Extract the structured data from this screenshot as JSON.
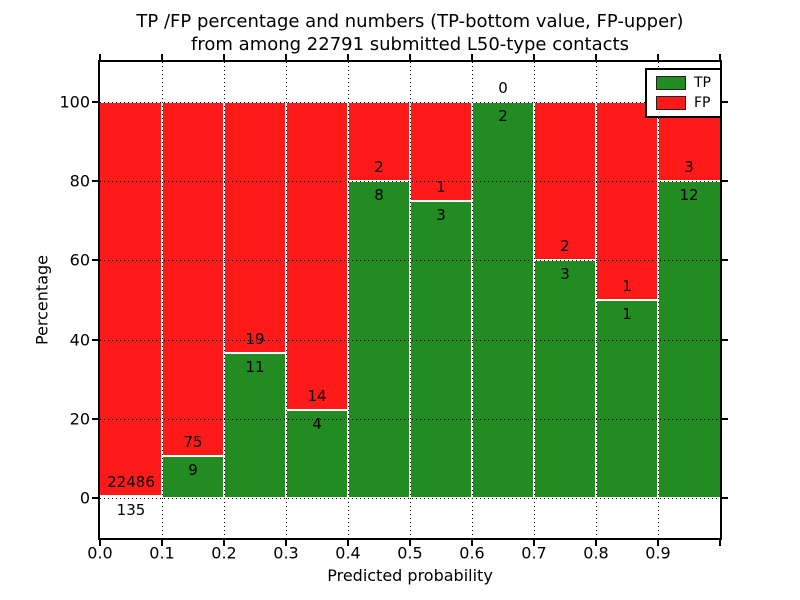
{
  "title": {
    "line1": "TP /FP percentage and numbers (TP-bottom value, FP-upper)",
    "line2": "from among 22791 submitted L50-type contacts"
  },
  "chart_data": {
    "type": "bar",
    "stacked": true,
    "normalization": "percent of bin total (TP+FP = 100%)",
    "title": "TP /FP percentage and numbers (TP-bottom value, FP-upper) from among 22791 submitted L50-type contacts",
    "xlabel": "Predicted probability",
    "ylabel": "Percentage",
    "xlim": [
      0.0,
      1.0
    ],
    "ylim": [
      -10,
      110
    ],
    "grid": true,
    "legend_position": "upper right",
    "total_submitted_contacts": 22791,
    "x_tick_labels": [
      "0.0",
      "0.1",
      "0.2",
      "0.3",
      "0.4",
      "0.5",
      "0.6",
      "0.7",
      "0.8",
      "0.9"
    ],
    "y_tick_labels": [
      "0",
      "20",
      "40",
      "60",
      "80",
      "100"
    ],
    "y_tick_values": [
      0,
      20,
      40,
      60,
      80,
      100
    ],
    "bin_width": 0.1,
    "series": [
      {
        "name": "TP",
        "color": "#228b22"
      },
      {
        "name": "FP",
        "color": "#ff1a1a"
      }
    ],
    "bins": [
      {
        "range": [
          0.0,
          0.1
        ],
        "tp": 135,
        "fp": 22486
      },
      {
        "range": [
          0.1,
          0.2
        ],
        "tp": 9,
        "fp": 75
      },
      {
        "range": [
          0.2,
          0.3
        ],
        "tp": 11,
        "fp": 19
      },
      {
        "range": [
          0.3,
          0.4
        ],
        "tp": 4,
        "fp": 14
      },
      {
        "range": [
          0.4,
          0.5
        ],
        "tp": 8,
        "fp": 2
      },
      {
        "range": [
          0.5,
          0.6
        ],
        "tp": 3,
        "fp": 1
      },
      {
        "range": [
          0.6,
          0.7
        ],
        "tp": 2,
        "fp": 0
      },
      {
        "range": [
          0.7,
          0.8
        ],
        "tp": 3,
        "fp": 2
      },
      {
        "range": [
          0.8,
          0.9
        ],
        "tp": 1,
        "fp": 1
      },
      {
        "range": [
          0.9,
          1.0
        ],
        "tp": 12,
        "fp": 3
      }
    ]
  }
}
